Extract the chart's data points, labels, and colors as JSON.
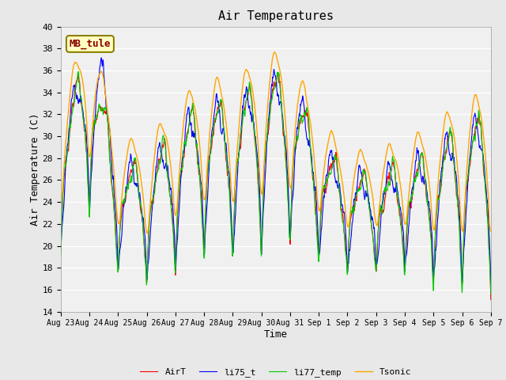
{
  "title": "Air Temperatures",
  "xlabel": "Time",
  "ylabel": "Air Temperature (C)",
  "ylim": [
    14,
    40
  ],
  "yticks": [
    14,
    16,
    18,
    20,
    22,
    24,
    26,
    28,
    30,
    32,
    34,
    36,
    38,
    40
  ],
  "annotation_text": "MB_tule",
  "annotation_color": "#8B0000",
  "annotation_bg": "#FFFFC0",
  "annotation_border": "#8B8000",
  "series": [
    "AirT",
    "li75_t",
    "li77_temp",
    "Tsonic"
  ],
  "colors": [
    "#FF0000",
    "#0000FF",
    "#00CC00",
    "#FFA500"
  ],
  "bg_color": "#E8E8E8",
  "plot_bg": "#F0F0F0",
  "grid_color": "#FFFFFF",
  "font_family": "monospace",
  "num_days": 15,
  "tick_labels": [
    "Aug 23",
    "Aug 24",
    "Aug 25",
    "Aug 26",
    "Aug 27",
    "Aug 28",
    "Aug 29",
    "Aug 30",
    "Aug 31",
    "Sep 1",
    "Sep 2",
    "Sep 3",
    "Sep 4",
    "Sep 5",
    "Sep 6",
    "Sep 7"
  ]
}
